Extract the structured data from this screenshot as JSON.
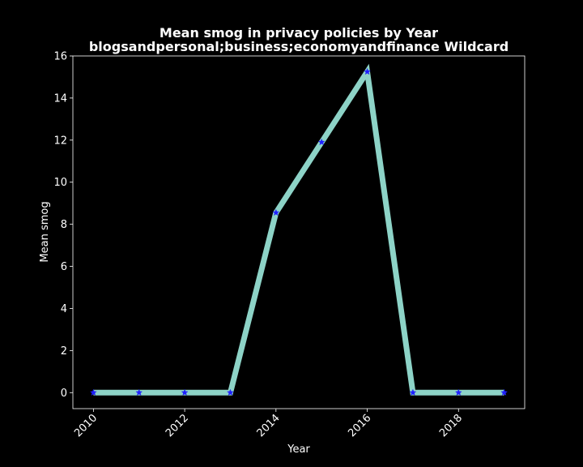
{
  "chart_data": {
    "type": "line",
    "title_line1": "Mean smog in privacy policies by Year",
    "title_line2": "blogsandpersonal;business;economyandfinance Wildcard",
    "xlabel": "Year",
    "ylabel": "Mean smog",
    "x": [
      2010,
      2011,
      2012,
      2013,
      2014,
      2015,
      2016,
      2017,
      2018,
      2019
    ],
    "series": [
      {
        "values": [
          0,
          0,
          0,
          0,
          8.55,
          11.9,
          15.25,
          0,
          0,
          0
        ],
        "line_color": "#8dd3c7",
        "marker_color": "#1f1fff",
        "marker": "star"
      }
    ],
    "xlim": [
      2009.55,
      2019.45
    ],
    "ylim": [
      -0.76,
      16
    ],
    "xticks": [
      "2010",
      "2012",
      "2014",
      "2016",
      "2018"
    ],
    "yticks": [
      "0",
      "2",
      "4",
      "6",
      "8",
      "10",
      "12",
      "14",
      "16"
    ],
    "background": "#000000",
    "foreground": "#ffffff",
    "grid": false,
    "legend": "none"
  }
}
